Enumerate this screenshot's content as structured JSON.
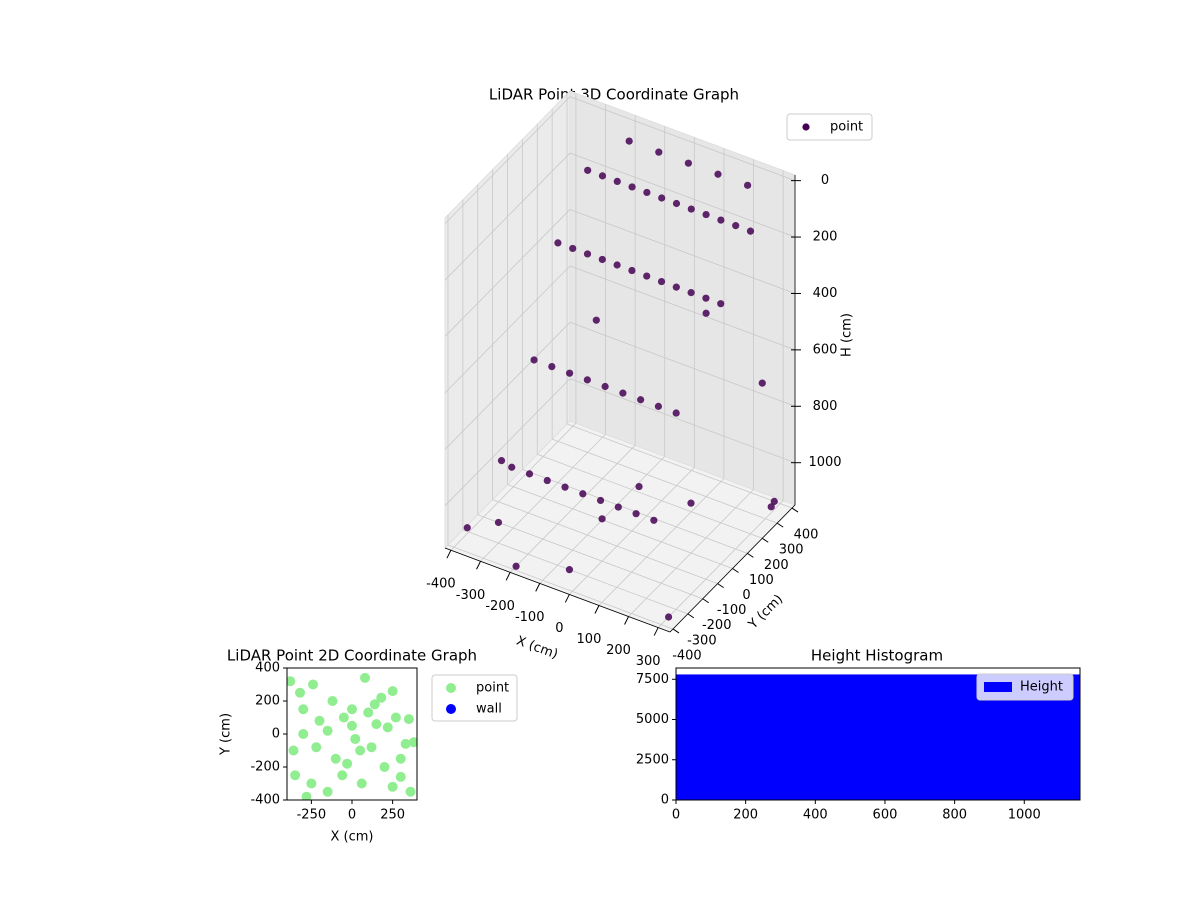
{
  "chart_data": [
    {
      "type": "scatter3d",
      "title": "LiDAR Point 3D Coordinate Graph",
      "x_label": "X (cm)",
      "y_label": "Y (cm)",
      "z_label": "H (cm)",
      "xlim": [
        -420,
        340
      ],
      "ylim": [
        -420,
        420
      ],
      "zlim": [
        -20,
        1150
      ],
      "z_inverted": true,
      "xticks": [
        -400,
        -300,
        -200,
        -100,
        0,
        100,
        200,
        300
      ],
      "yticks": [
        -400,
        -300,
        -200,
        -100,
        0,
        100,
        200,
        300,
        400
      ],
      "zticks": [
        0,
        200,
        400,
        600,
        800,
        1000
      ],
      "grid": true,
      "legend": "upper right",
      "series": [
        {
          "name": "point",
          "color": "#440154",
          "x": [
            -300,
            -250,
            -200,
            -150,
            -100,
            -50,
            0,
            50,
            100,
            150,
            200,
            250,
            -300,
            -250,
            -200,
            -150,
            -100,
            -50,
            0,
            50,
            100,
            150,
            200,
            250,
            -280,
            -220,
            -160,
            -100,
            -40,
            20,
            80,
            140,
            200,
            -280,
            -220,
            -160,
            -100,
            -40,
            20,
            80,
            140,
            200,
            -200,
            -100,
            0,
            100,
            200,
            -380,
            -350,
            -390,
            300,
            320,
            340,
            -60,
            150,
            250,
            280,
            -200,
            0,
            100,
            -120
          ],
          "y": [
            300,
            300,
            300,
            300,
            300,
            300,
            300,
            300,
            300,
            300,
            300,
            300,
            100,
            100,
            100,
            100,
            100,
            100,
            100,
            100,
            100,
            100,
            100,
            100,
            -100,
            -100,
            -100,
            -100,
            -100,
            -100,
            -100,
            -100,
            -100,
            -250,
            -250,
            -250,
            -250,
            -250,
            -250,
            -250,
            -250,
            -250,
            380,
            380,
            380,
            380,
            380,
            -350,
            -200,
            -100,
            -350,
            300,
            200,
            -300,
            -250,
            -100,
            400,
            -380,
            -200,
            300,
            0
          ],
          "z": [
            150,
            150,
            150,
            150,
            150,
            150,
            150,
            150,
            150,
            150,
            150,
            150,
            300,
            300,
            300,
            300,
            300,
            300,
            300,
            300,
            300,
            300,
            300,
            300,
            600,
            600,
            600,
            600,
            600,
            600,
            600,
            600,
            600,
            900,
            900,
            900,
            900,
            900,
            900,
            900,
            900,
            900,
            50,
            50,
            50,
            50,
            50,
            1100,
            1150,
            1000,
            1150,
            1100,
            600,
            1150,
            800,
            900,
            1150,
            1150,
            1000,
            500,
            450
          ]
        }
      ]
    },
    {
      "type": "scatter",
      "title": "LiDAR Point 2D Coordinate Graph",
      "x_label": "X (cm)",
      "y_label": "Y (cm)",
      "xlim": [
        -400,
        400
      ],
      "ylim": [
        -400,
        400
      ],
      "xticks": [
        -250,
        0,
        250
      ],
      "yticks": [
        -400,
        -200,
        0,
        200,
        400
      ],
      "legend": "outside right",
      "series": [
        {
          "name": "point",
          "color": "#90ee90",
          "x": [
            -380,
            -350,
            -300,
            -250,
            -200,
            -150,
            -100,
            -50,
            0,
            50,
            100,
            150,
            200,
            250,
            300,
            350,
            380,
            -320,
            -280,
            -220,
            -120,
            -60,
            20,
            80,
            140,
            220,
            300,
            360,
            -360,
            -240,
            -30,
            60,
            180,
            270,
            330,
            -150,
            0,
            120,
            -300,
            250
          ],
          "y": [
            320,
            -250,
            150,
            -300,
            80,
            20,
            -150,
            100,
            50,
            -100,
            130,
            60,
            -200,
            -320,
            -150,
            90,
            -50,
            250,
            -380,
            -80,
            200,
            -250,
            -30,
            340,
            180,
            40,
            -260,
            -350,
            -100,
            300,
            -180,
            -300,
            220,
            100,
            -60,
            -350,
            150,
            -80,
            0,
            260
          ]
        },
        {
          "name": "wall",
          "color": "#0000ff",
          "x": [],
          "y": []
        }
      ]
    },
    {
      "type": "histogram",
      "title": "Height Histogram",
      "xlim": [
        0,
        1160
      ],
      "ylim": [
        0,
        8200
      ],
      "xticks": [
        0,
        200,
        400,
        600,
        800,
        1000
      ],
      "yticks": [
        0,
        2500,
        5000,
        7500
      ],
      "legend": "upper right",
      "series": [
        {
          "name": "Height",
          "color": "#0000ff",
          "bins": [
            0,
            1160
          ],
          "counts": [
            7800
          ]
        }
      ]
    }
  ]
}
